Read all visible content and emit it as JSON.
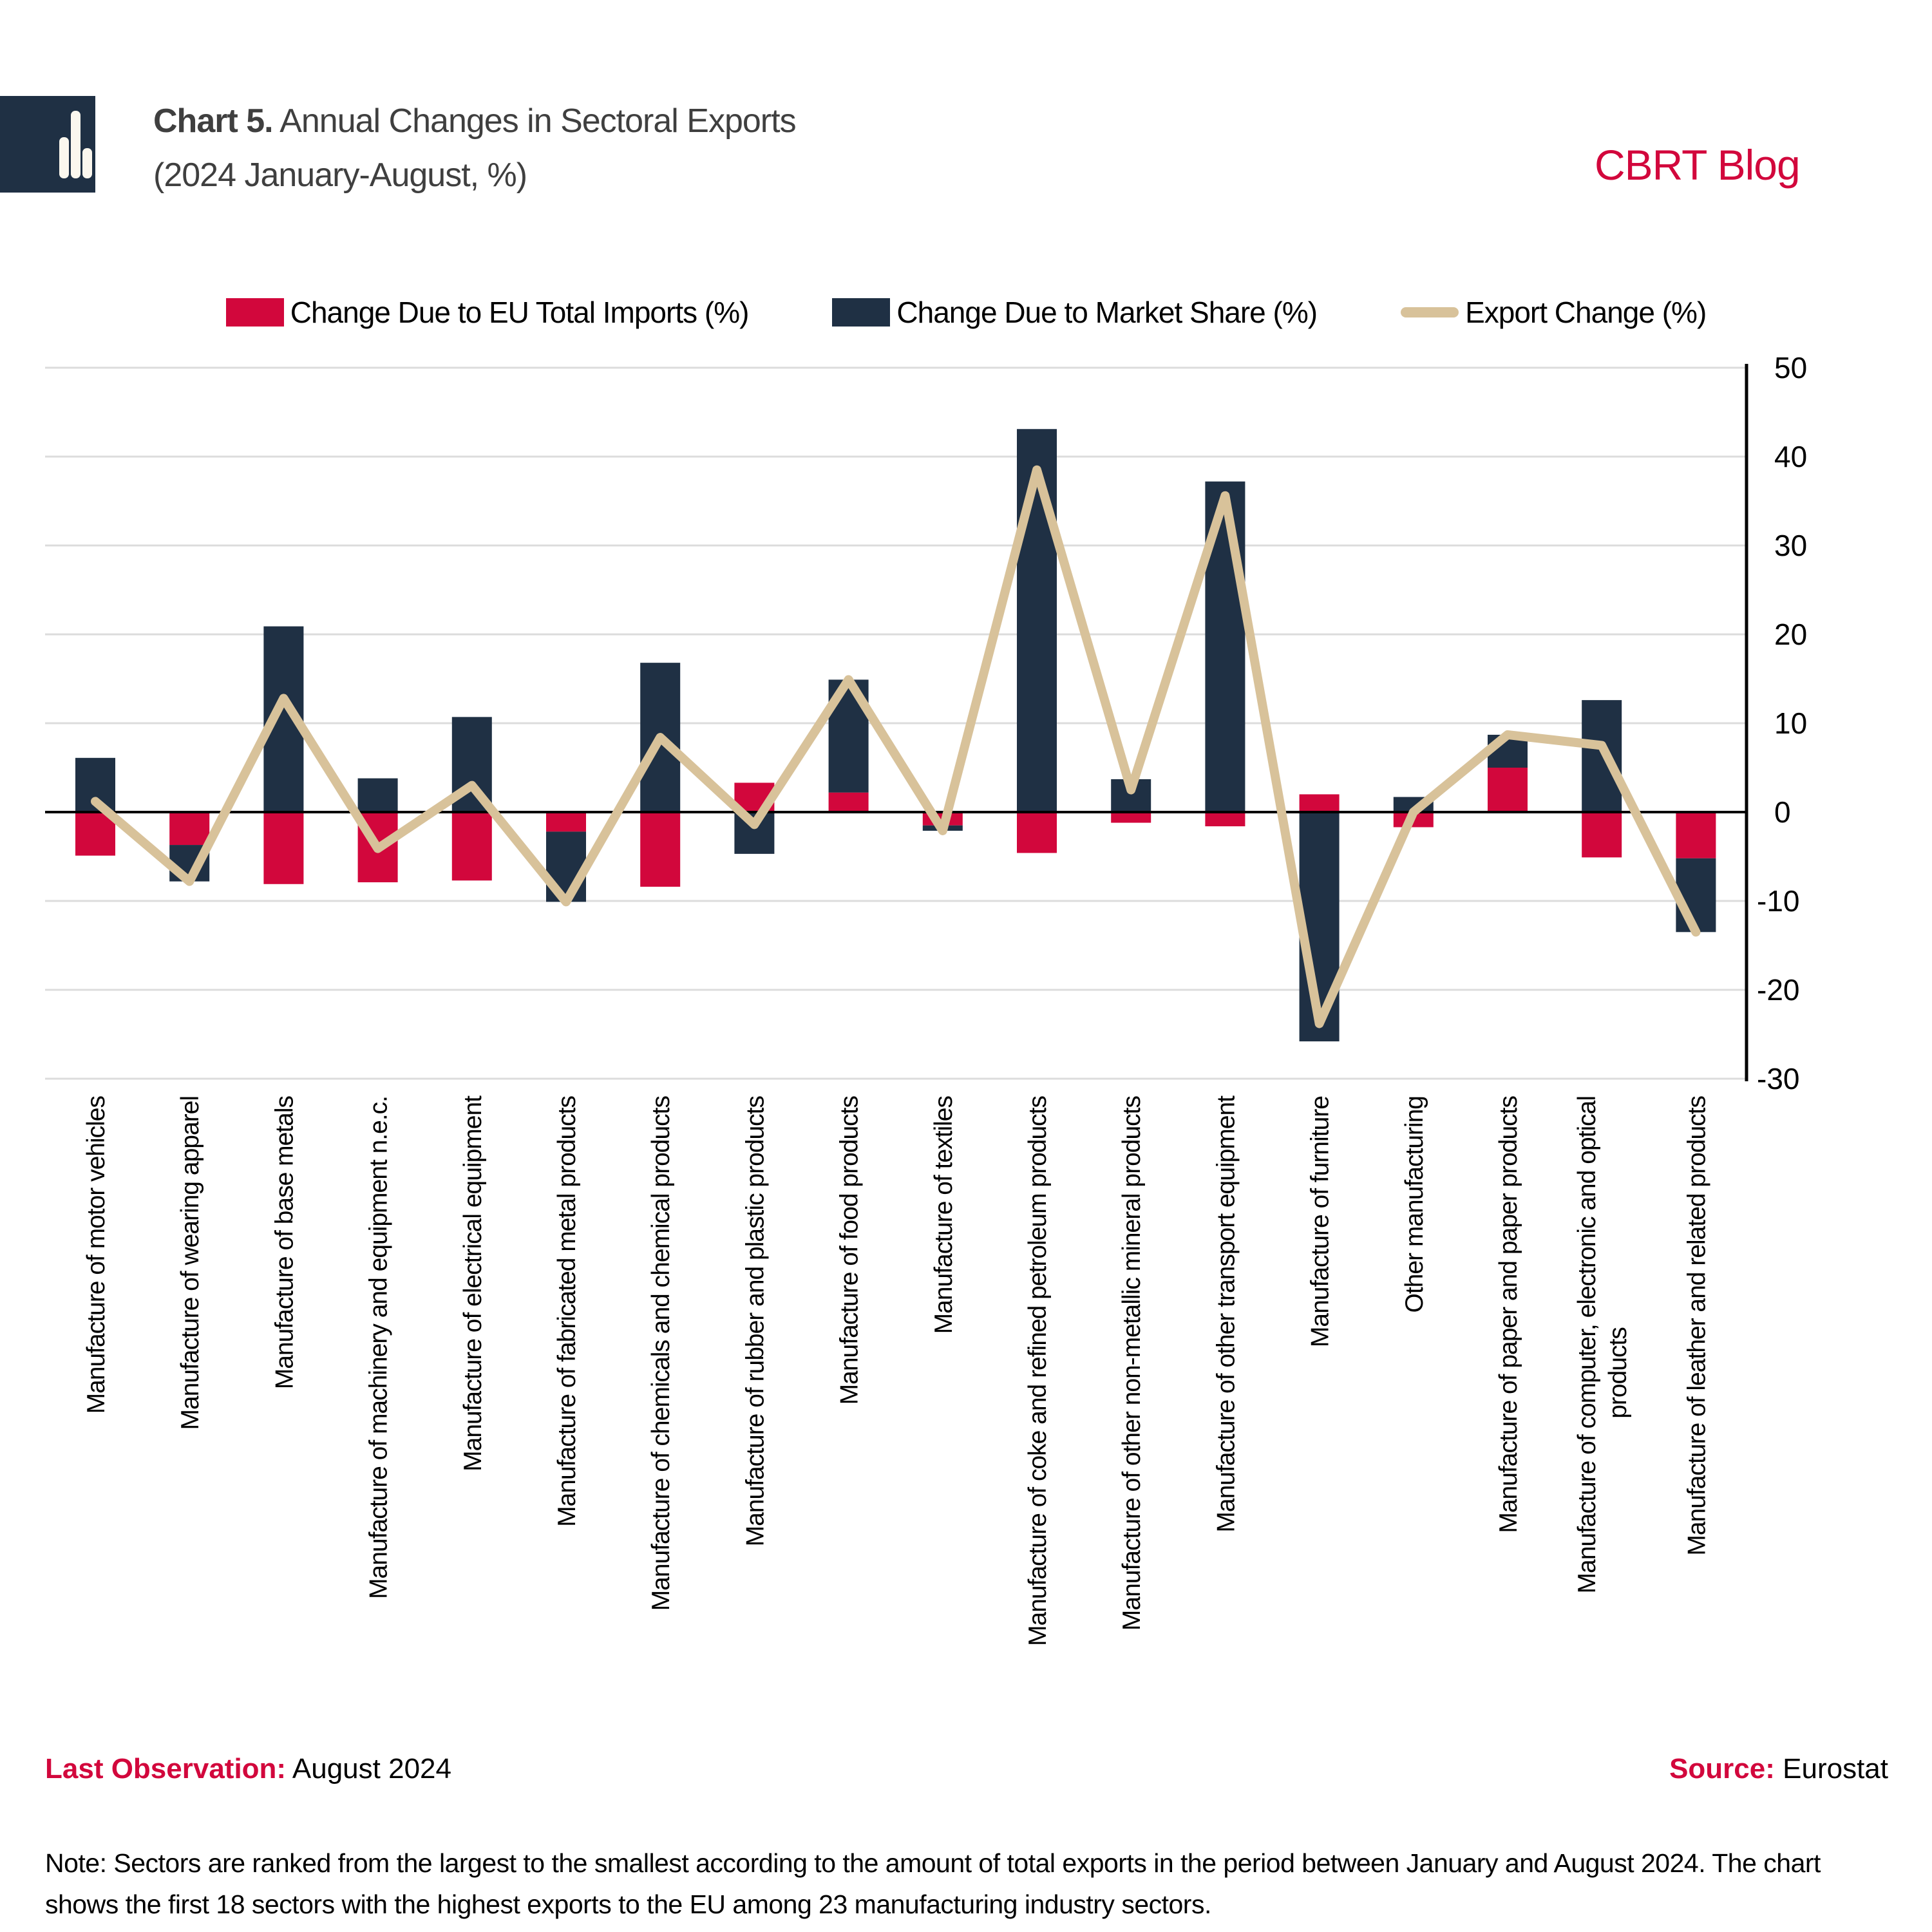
{
  "header": {
    "title_prefix": "Chart 5.",
    "title_rest": " Annual Changes in Sectoral Exports",
    "title_line2": "(2024 January-August, %)",
    "brand": "CBRT Blog"
  },
  "legend": [
    {
      "label": "Change Due to EU Total Imports (%)",
      "color": "#D2073C",
      "type": "box"
    },
    {
      "label": "Change Due to Market Share (%)",
      "color": "#1F3044",
      "type": "box"
    },
    {
      "label": "Export Change (%)",
      "color": "#D8C29A",
      "type": "line"
    }
  ],
  "footer": {
    "last_observation_label": "Last Observation:",
    "last_observation_value": " August 2024",
    "source_label": "Source:",
    "source_value": " Eurostat",
    "note": "Note: Sectors are ranked from the largest to the smallest according to the amount of total exports in the period between January and August 2024. The chart shows the first 18 sectors with the highest exports to the EU among 23 manufacturing industry sectors."
  },
  "colors": {
    "red": "#D2073C",
    "navy": "#1F3044",
    "tan": "#D8C29A",
    "grid": "#DCDCDC",
    "title_gray": "#3F3F3F"
  },
  "chart_data": {
    "type": "bar",
    "stacked": true,
    "legend_position": "top",
    "axis_side": "right",
    "grid": true,
    "ylim": [
      -30,
      50
    ],
    "yticks": [
      50,
      40,
      30,
      20,
      10,
      0,
      -10,
      -20,
      -30
    ],
    "categories": [
      "Manufacture of motor vehicles",
      "Manufacture of wearing apparel",
      "Manufacture of base metals",
      "Manufacture of machinery and equipment n.e.c.",
      "Manufacture of electrical equipment",
      "Manufacture of fabricated metal products",
      "Manufacture of chemicals and chemical products",
      "Manufacture of rubber and plastic products",
      "Manufacture of food products",
      "Manufacture of textiles",
      "Manufacture of coke and refined petroleum products",
      "Manufacture of other non-metallic mineral products",
      "Manufacture of other transport equipment",
      "Manufacture of furniture",
      "Other manufacturing",
      "Manufacture of paper and paper products",
      "Manufacture of computer, electronic and optical products",
      "Manufacture of leather and related products"
    ],
    "series": [
      {
        "name": "Change Due to EU Total Imports (%)",
        "color": "#D2073C",
        "values": [
          -4.9,
          -3.7,
          -8.1,
          -7.9,
          -7.7,
          -2.2,
          -8.4,
          3.3,
          2.2,
          -1.5,
          -4.6,
          -1.2,
          -1.6,
          2.0,
          -1.7,
          5.0,
          -5.1,
          -5.2
        ]
      },
      {
        "name": "Change Due to Market Share (%)",
        "color": "#1F3044",
        "values": [
          6.1,
          -4.1,
          20.9,
          3.8,
          10.7,
          -7.9,
          16.8,
          -4.7,
          12.7,
          -0.6,
          43.1,
          3.7,
          37.2,
          -25.8,
          1.7,
          3.7,
          12.6,
          -8.3
        ]
      }
    ],
    "line_series": {
      "name": "Export Change (%)",
      "color": "#D8C29A",
      "values": [
        1.2,
        -7.8,
        12.8,
        -4.1,
        3.0,
        -10.1,
        8.4,
        -1.4,
        14.9,
        -2.1,
        38.5,
        2.5,
        35.6,
        -23.8,
        0.0,
        8.7,
        7.5,
        -13.5
      ]
    }
  }
}
